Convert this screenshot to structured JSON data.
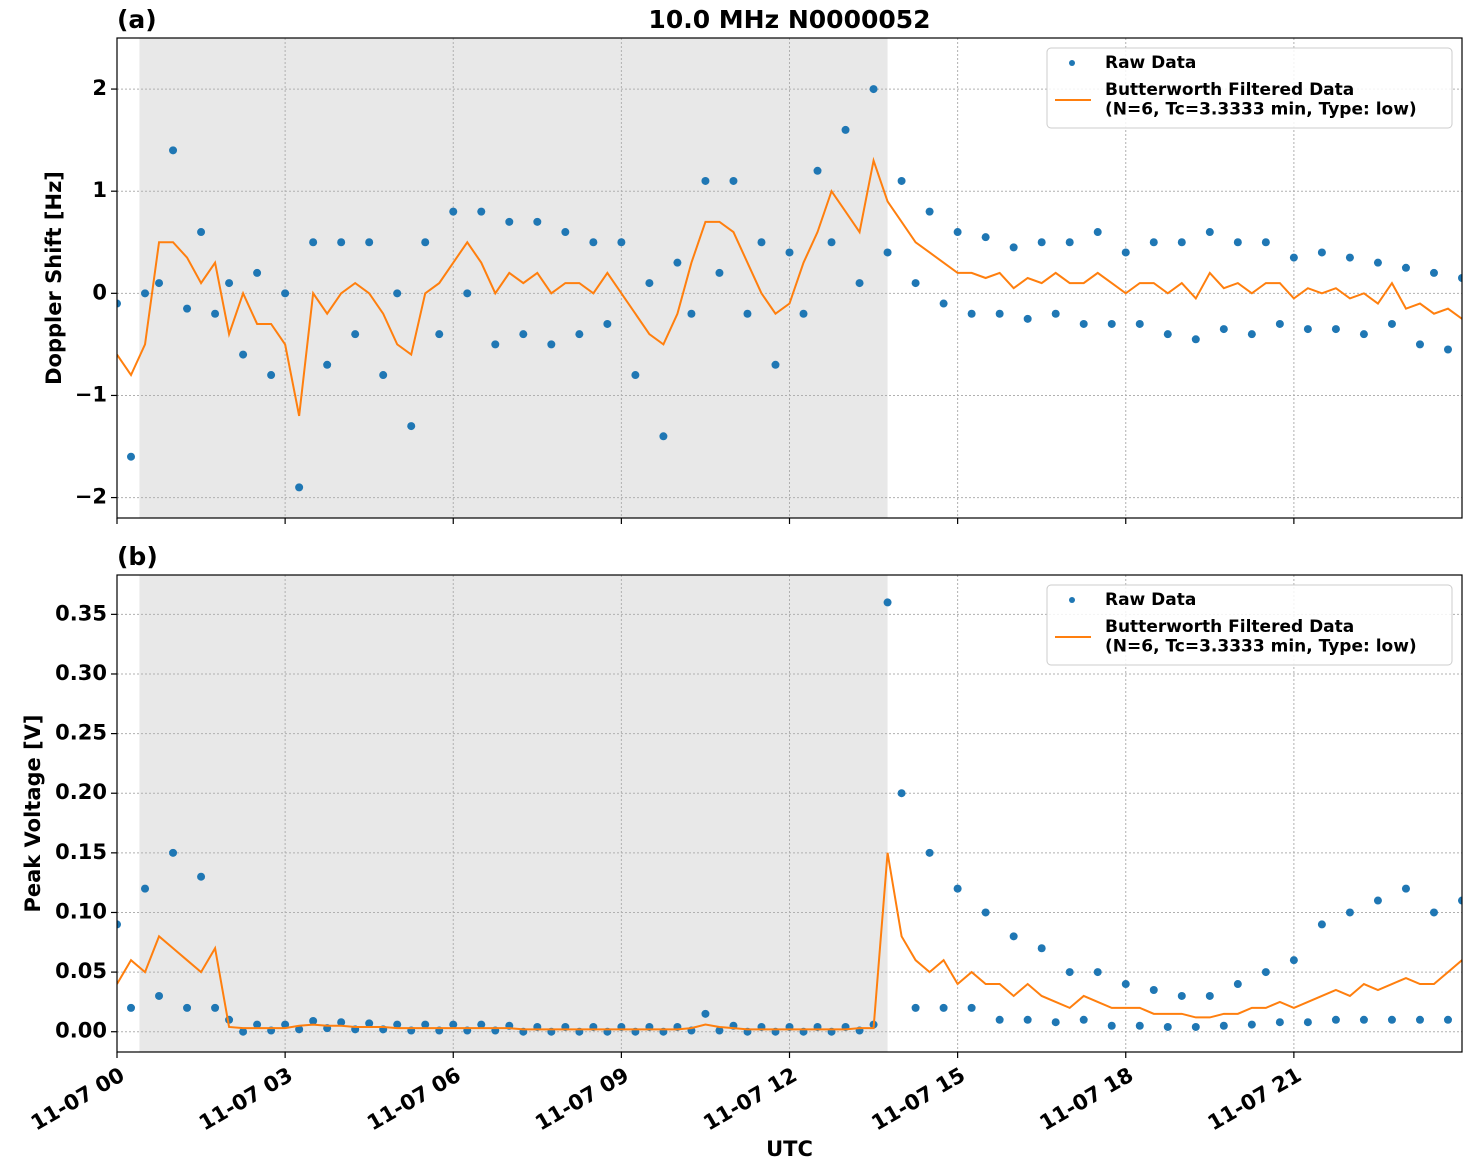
{
  "chart_data": [
    {
      "type": "line",
      "panel_label": "(a)",
      "title": "10.0 MHz N0000052",
      "ylabel": "Doppler Shift [Hz]",
      "x": [
        0,
        0.25,
        0.5,
        0.75,
        1,
        1.25,
        1.5,
        1.75,
        2,
        2.25,
        2.5,
        2.75,
        3,
        3.25,
        3.5,
        3.75,
        4,
        4.25,
        4.5,
        4.75,
        5,
        5.25,
        5.5,
        5.75,
        6,
        6.25,
        6.5,
        6.75,
        7,
        7.25,
        7.5,
        7.75,
        8,
        8.25,
        8.5,
        8.75,
        9,
        9.25,
        9.5,
        9.75,
        10,
        10.25,
        10.5,
        10.75,
        11,
        11.25,
        11.5,
        11.75,
        12,
        12.25,
        12.5,
        12.75,
        13,
        13.25,
        13.5,
        13.75,
        14,
        14.25,
        14.5,
        14.75,
        15,
        15.25,
        15.5,
        15.75,
        16,
        16.25,
        16.5,
        16.75,
        17,
        17.25,
        17.5,
        17.75,
        18,
        18.25,
        18.5,
        18.75,
        19,
        19.25,
        19.5,
        19.75,
        20,
        20.25,
        20.5,
        20.75,
        21,
        21.25,
        21.5,
        21.75,
        22,
        22.25,
        22.5,
        22.75,
        23,
        23.25,
        23.5,
        23.75,
        24
      ],
      "series": [
        {
          "name": "Raw Data",
          "color": "#1f77b4",
          "style": "markers",
          "values": [
            -0.1,
            -1.6,
            0.0,
            0.1,
            1.4,
            -0.15,
            0.6,
            -0.2,
            0.1,
            -0.6,
            0.2,
            -0.8,
            0.0,
            -1.9,
            0.5,
            -0.7,
            0.5,
            -0.4,
            0.5,
            -0.8,
            0.0,
            -1.3,
            0.5,
            -0.4,
            0.8,
            0.0,
            0.8,
            -0.5,
            0.7,
            -0.4,
            0.7,
            -0.5,
            0.6,
            -0.4,
            0.5,
            -0.3,
            0.5,
            -0.8,
            0.1,
            -1.4,
            0.3,
            -0.2,
            1.1,
            0.2,
            1.1,
            -0.2,
            0.5,
            -0.7,
            0.4,
            -0.2,
            1.2,
            0.5,
            1.6,
            0.1,
            2.0,
            0.4,
            1.1,
            0.1,
            0.8,
            -0.1,
            0.6,
            -0.2,
            0.55,
            -0.2,
            0.45,
            -0.25,
            0.5,
            -0.2,
            0.5,
            -0.3,
            0.6,
            -0.3,
            0.4,
            -0.3,
            0.5,
            -0.4,
            0.5,
            -0.45,
            0.6,
            -0.35,
            0.5,
            -0.4,
            0.5,
            -0.3,
            0.35,
            -0.35,
            0.4,
            -0.35,
            0.35,
            -0.4,
            0.3,
            -0.3,
            0.25,
            -0.5,
            0.2,
            -0.55,
            0.15
          ]
        },
        {
          "name": "Butterworth Filtered Data\n(N=6, Tc=3.3333 min, Type: low)",
          "color": "#ff7f0e",
          "style": "line",
          "values": [
            -0.6,
            -0.8,
            -0.5,
            0.5,
            0.5,
            0.35,
            0.1,
            0.3,
            -0.4,
            0.0,
            -0.3,
            -0.3,
            -0.5,
            -1.2,
            0.0,
            -0.2,
            0.0,
            0.1,
            0.0,
            -0.2,
            -0.5,
            -0.6,
            0.0,
            0.1,
            0.3,
            0.5,
            0.3,
            0.0,
            0.2,
            0.1,
            0.2,
            0.0,
            0.1,
            0.1,
            0.0,
            0.2,
            0.0,
            -0.2,
            -0.4,
            -0.5,
            -0.2,
            0.3,
            0.7,
            0.7,
            0.6,
            0.3,
            0.0,
            -0.2,
            -0.1,
            0.3,
            0.6,
            1.0,
            0.8,
            0.6,
            1.3,
            0.9,
            0.7,
            0.5,
            0.4,
            0.3,
            0.2,
            0.2,
            0.15,
            0.2,
            0.05,
            0.15,
            0.1,
            0.2,
            0.1,
            0.1,
            0.2,
            0.1,
            0.0,
            0.1,
            0.1,
            0.0,
            0.1,
            -0.05,
            0.2,
            0.05,
            0.1,
            0.0,
            0.1,
            0.1,
            -0.05,
            0.05,
            0.0,
            0.05,
            -0.05,
            0.0,
            -0.1,
            0.1,
            -0.15,
            -0.1,
            -0.2,
            -0.15,
            -0.25
          ]
        }
      ],
      "xlim": [
        0,
        24
      ],
      "xticks": [
        0,
        3,
        6,
        9,
        12,
        15,
        18,
        21
      ],
      "ylim": [
        -2.2,
        2.5
      ],
      "yticks": [
        {
          "value": -2,
          "label": "−2"
        },
        {
          "value": -1,
          "label": "−1"
        },
        0,
        1,
        2
      ],
      "shade": [
        0.4,
        13.75
      ],
      "grid": true,
      "legend": "upper right"
    },
    {
      "type": "line",
      "panel_label": "(b)",
      "ylabel": "Peak Voltage [V]",
      "xlabel": "UTC",
      "x": [
        0,
        0.25,
        0.5,
        0.75,
        1,
        1.25,
        1.5,
        1.75,
        2,
        2.25,
        2.5,
        2.75,
        3,
        3.25,
        3.5,
        3.75,
        4,
        4.25,
        4.5,
        4.75,
        5,
        5.25,
        5.5,
        5.75,
        6,
        6.25,
        6.5,
        6.75,
        7,
        7.25,
        7.5,
        7.75,
        8,
        8.25,
        8.5,
        8.75,
        9,
        9.25,
        9.5,
        9.75,
        10,
        10.25,
        10.5,
        10.75,
        11,
        11.25,
        11.5,
        11.75,
        12,
        12.25,
        12.5,
        12.75,
        13,
        13.25,
        13.5,
        13.75,
        14,
        14.25,
        14.5,
        14.75,
        15,
        15.25,
        15.5,
        15.75,
        16,
        16.25,
        16.5,
        16.75,
        17,
        17.25,
        17.5,
        17.75,
        18,
        18.25,
        18.5,
        18.75,
        19,
        19.25,
        19.5,
        19.75,
        20,
        20.25,
        20.5,
        20.75,
        21,
        21.25,
        21.5,
        21.75,
        22,
        22.25,
        22.5,
        22.75,
        23,
        23.25,
        23.5,
        23.75,
        24
      ],
      "series": [
        {
          "name": "Raw Data",
          "color": "#1f77b4",
          "style": "markers",
          "values": [
            0.09,
            0.02,
            0.12,
            0.03,
            0.15,
            0.02,
            0.13,
            0.02,
            0.01,
            0.0,
            0.006,
            0.001,
            0.006,
            0.002,
            0.009,
            0.003,
            0.008,
            0.002,
            0.007,
            0.002,
            0.006,
            0.001,
            0.006,
            0.001,
            0.006,
            0.001,
            0.006,
            0.001,
            0.005,
            0.0,
            0.004,
            0.0,
            0.004,
            0.0,
            0.004,
            0.0,
            0.004,
            0.0,
            0.004,
            0.0,
            0.004,
            0.001,
            0.015,
            0.001,
            0.005,
            0.0,
            0.004,
            0.0,
            0.004,
            0.0,
            0.004,
            0.0,
            0.004,
            0.001,
            0.006,
            0.36,
            0.2,
            0.02,
            0.15,
            0.02,
            0.12,
            0.02,
            0.1,
            0.01,
            0.08,
            0.01,
            0.07,
            0.008,
            0.05,
            0.01,
            0.05,
            0.005,
            0.04,
            0.005,
            0.035,
            0.004,
            0.03,
            0.004,
            0.03,
            0.005,
            0.04,
            0.006,
            0.05,
            0.008,
            0.06,
            0.008,
            0.09,
            0.01,
            0.1,
            0.01,
            0.11,
            0.01,
            0.12,
            0.01,
            0.1,
            0.01,
            0.11
          ]
        },
        {
          "name": "Butterworth Filtered Data\n(N=6, Tc=3.3333 min, Type: low)",
          "color": "#ff7f0e",
          "style": "line",
          "values": [
            0.04,
            0.06,
            0.05,
            0.08,
            0.07,
            0.06,
            0.05,
            0.07,
            0.004,
            0.003,
            0.003,
            0.003,
            0.003,
            0.005,
            0.006,
            0.005,
            0.005,
            0.004,
            0.004,
            0.004,
            0.003,
            0.003,
            0.003,
            0.003,
            0.003,
            0.003,
            0.003,
            0.003,
            0.003,
            0.002,
            0.002,
            0.002,
            0.002,
            0.002,
            0.002,
            0.002,
            0.002,
            0.002,
            0.002,
            0.002,
            0.002,
            0.003,
            0.006,
            0.004,
            0.003,
            0.002,
            0.002,
            0.002,
            0.002,
            0.002,
            0.002,
            0.002,
            0.002,
            0.003,
            0.003,
            0.15,
            0.08,
            0.06,
            0.05,
            0.06,
            0.04,
            0.05,
            0.04,
            0.04,
            0.03,
            0.04,
            0.03,
            0.025,
            0.02,
            0.03,
            0.025,
            0.02,
            0.02,
            0.02,
            0.015,
            0.015,
            0.015,
            0.012,
            0.012,
            0.015,
            0.015,
            0.02,
            0.02,
            0.025,
            0.02,
            0.025,
            0.03,
            0.035,
            0.03,
            0.04,
            0.035,
            0.04,
            0.045,
            0.04,
            0.04,
            0.05,
            0.06
          ]
        }
      ],
      "xlim": [
        0,
        24
      ],
      "xticks": [
        {
          "value": 0,
          "label": "11-07 00"
        },
        {
          "value": 3,
          "label": "11-07 03"
        },
        {
          "value": 6,
          "label": "11-07 06"
        },
        {
          "value": 9,
          "label": "11-07 09"
        },
        {
          "value": 12,
          "label": "11-07 12"
        },
        {
          "value": 15,
          "label": "11-07 15"
        },
        {
          "value": 18,
          "label": "11-07 18"
        },
        {
          "value": 21,
          "label": "11-07 21"
        }
      ],
      "ylim": [
        -0.017,
        0.383
      ],
      "yticks": [
        {
          "value": 0,
          "label": "0.00"
        },
        {
          "value": 0.05,
          "label": "0.05"
        },
        {
          "value": 0.1,
          "label": "0.10"
        },
        {
          "value": 0.15,
          "label": "0.15"
        },
        {
          "value": 0.2,
          "label": "0.20"
        },
        {
          "value": 0.25,
          "label": "0.25"
        },
        {
          "value": 0.3,
          "label": "0.30"
        },
        {
          "value": 0.35,
          "label": "0.35"
        }
      ],
      "shade": [
        0.4,
        13.75
      ],
      "grid": true,
      "legend": "upper right"
    }
  ]
}
